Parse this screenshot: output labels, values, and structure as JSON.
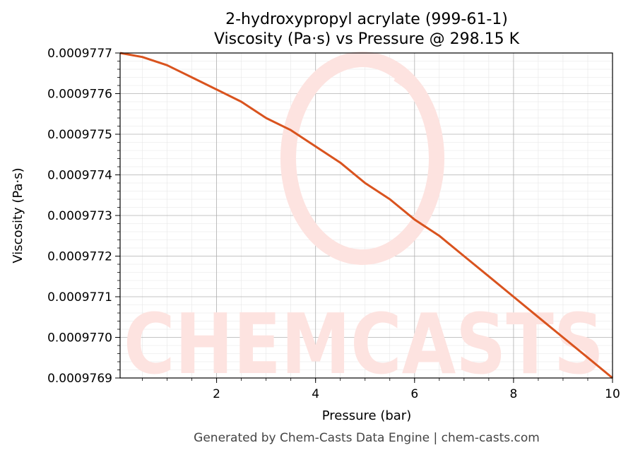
{
  "chart_data": {
    "type": "line",
    "title_line1": "2-hydroxypropyl acrylate (999-61-1)",
    "title_line2": "Viscosity (Pa·s) vs Pressure @ 298.15 K",
    "xlabel": "Pressure (bar)",
    "ylabel": "Viscosity (Pa·s)",
    "xlim": [
      0.05,
      10
    ],
    "ylim": [
      0.0009769,
      0.0009777
    ],
    "x_ticks": [
      2,
      4,
      6,
      8,
      10
    ],
    "x_tick_labels": [
      "2",
      "4",
      "6",
      "8",
      "10"
    ],
    "y_ticks": [
      0.0009769,
      0.000977,
      0.0009771,
      0.0009772,
      0.0009773,
      0.0009774,
      0.0009775,
      0.0009776,
      0.0009777
    ],
    "y_tick_labels": [
      "0.0009769",
      "0.0009770",
      "0.0009771",
      "0.0009772",
      "0.0009773",
      "0.0009774",
      "0.0009775",
      "0.0009776",
      "0.0009777"
    ],
    "grid": true,
    "series": [
      {
        "color": "#d9531e",
        "x": [
          0.05,
          0.5,
          1.0,
          1.5,
          2.0,
          2.5,
          3.0,
          3.5,
          4.0,
          4.5,
          5.0,
          5.5,
          6.0,
          6.5,
          7.0,
          7.5,
          8.0,
          8.5,
          9.0,
          9.5,
          10.0
        ],
        "y": [
          0.0009777,
          0.00097769,
          0.00097767,
          0.00097764,
          0.00097761,
          0.00097758,
          0.00097754,
          0.00097751,
          0.00097747,
          0.00097743,
          0.00097738,
          0.00097734,
          0.00097729,
          0.00097725,
          0.0009772,
          0.00097715,
          0.0009771,
          0.00097705,
          0.000977,
          0.00097695,
          0.0009769
        ]
      }
    ]
  },
  "watermark": {
    "text": "CHEMCASTS",
    "color": "#fde3e0"
  },
  "footer": {
    "text": "Generated by Chem-Casts Data Engine | chem-casts.com"
  }
}
